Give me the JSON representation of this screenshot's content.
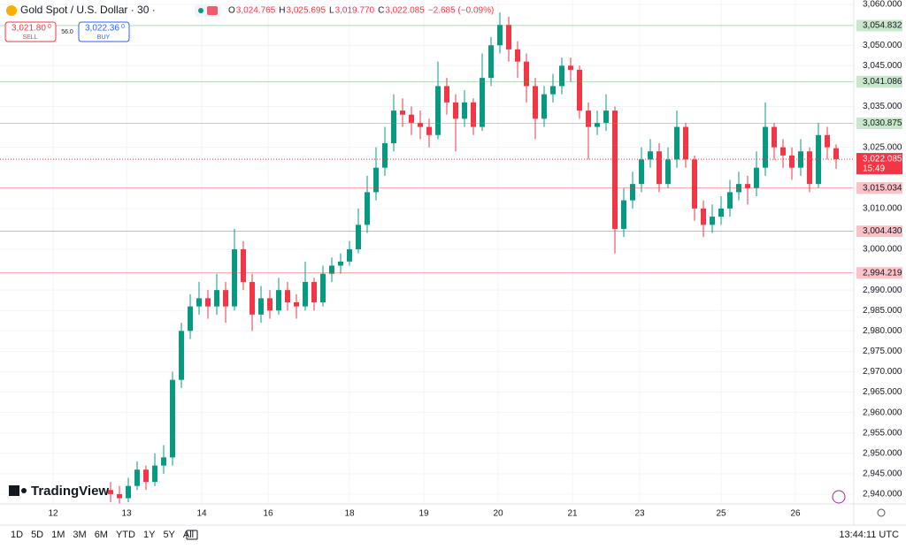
{
  "chart_data": {
    "type": "candlestick",
    "title": "Gold Spot / U.S. Dollar · 30 ·",
    "ohlc_legend": [
      {
        "key": "O",
        "value": "3,024.765"
      },
      {
        "key": "H",
        "value": "3,025.695"
      },
      {
        "key": "L",
        "value": "3,019.770"
      },
      {
        "key": "C",
        "value": "3,022.085"
      }
    ],
    "change": "−2.685 (−0.09%)",
    "up_color": "#089981",
    "down_color": "#f23645",
    "open": [
      2941,
      2940,
      2939,
      2942,
      2946,
      2943,
      2947,
      2949,
      2968,
      2980,
      2986,
      2988,
      2986,
      2990,
      2986,
      3000,
      2992,
      2984,
      2988,
      2985,
      2990,
      2987,
      2986,
      2992,
      2987,
      2994,
      2996,
      2997,
      3000,
      3006,
      3014,
      3020,
      3026,
      3034,
      3033,
      3031,
      3030,
      3028,
      3040,
      3036,
      3032,
      3036,
      3030,
      3042,
      3050,
      3055,
      3049,
      3046,
      3040,
      3032,
      3038,
      3040,
      3045,
      3044,
      3034,
      3030,
      3031,
      3034,
      3005,
      3012,
      3016,
      3022,
      3024,
      3016,
      3022,
      3030,
      3022,
      3010,
      3006,
      3008,
      3010,
      3014,
      3016,
      3015,
      3020,
      3030,
      3025,
      3023,
      3020,
      3024,
      3016,
      3028,
      3024.765
    ],
    "high": [
      2943,
      2942,
      2944,
      2948,
      2947,
      2950,
      2952,
      2970,
      2982,
      2989,
      2992,
      2990,
      2994,
      2992,
      3005,
      3002,
      2994,
      2991,
      2990,
      2993,
      2992,
      2989,
      2997,
      2993,
      2996,
      2998,
      2999,
      3002,
      3010,
      3018,
      3025,
      3030,
      3038,
      3037,
      3035,
      3034,
      3032,
      3046,
      3042,
      3038,
      3039,
      3037,
      3048,
      3052,
      3058,
      3057,
      3051,
      3048,
      3042,
      3040,
      3043,
      3047,
      3047,
      3045,
      3036,
      3034,
      3038,
      3035,
      3015,
      3019,
      3025,
      3027,
      3026,
      3025,
      3034,
      3031,
      3023,
      3012,
      3011,
      3013,
      3017,
      3019,
      3018,
      3024,
      3036,
      3031,
      3027,
      3025,
      3027,
      3025,
      3031,
      3030,
      3025.695
    ],
    "low": [
      2938,
      2937.5,
      2938,
      2941,
      2941,
      2942,
      2945,
      2947,
      2966,
      2978,
      2984,
      2983,
      2984,
      2982,
      2985,
      2990,
      2980,
      2982,
      2983,
      2984,
      2985,
      2983,
      2985,
      2985,
      2986,
      2992,
      2994,
      2996,
      2999,
      3004,
      3012,
      3018,
      3024,
      3030,
      3028,
      3027,
      3025,
      3027,
      3033,
      3024,
      3030,
      3028,
      3029,
      3040,
      3048,
      3046,
      3042,
      3036,
      3027,
      3030,
      3036,
      3038,
      3041,
      3032,
      3022,
      3028,
      3029,
      2999,
      3003,
      3010,
      3014,
      3020,
      3014,
      3015,
      3020,
      3020,
      3007,
      3003,
      3004,
      3006,
      3008,
      3012,
      3011,
      3013,
      3018,
      3022,
      3020,
      3017,
      3018,
      3014,
      3015,
      3022,
      3019.77
    ],
    "close": [
      2940,
      2939,
      2942,
      2946,
      2943,
      2947,
      2949,
      2968,
      2980,
      2986,
      2988,
      2986,
      2990,
      2986,
      3000,
      2992,
      2984,
      2988,
      2985,
      2990,
      2987,
      2986,
      2992,
      2987,
      2994,
      2996,
      2997,
      3000,
      3006,
      3014,
      3020,
      3026,
      3034,
      3033,
      3031,
      3030,
      3028,
      3040,
      3036,
      3032,
      3036,
      3030,
      3042,
      3050,
      3055,
      3049,
      3046,
      3040,
      3032,
      3038,
      3040,
      3045,
      3044,
      3034,
      3030,
      3031,
      3034,
      3005,
      3012,
      3016,
      3022,
      3024,
      3016,
      3022,
      3030,
      3022,
      3010,
      3006,
      3008,
      3010,
      3014,
      3016,
      3015,
      3020,
      3030,
      3025,
      3023,
      3020,
      3024,
      3016,
      3028,
      3025,
      3022.085
    ],
    "ylim": [
      2937.6,
      3061.1
    ],
    "yticks": [
      {
        "value": 3060,
        "label": "3,060.000"
      },
      {
        "value": 3050,
        "label": "3,050.000"
      },
      {
        "value": 3045,
        "label": "3,045.000"
      },
      {
        "value": 3035,
        "label": "3,035.000"
      },
      {
        "value": 3025,
        "label": "3,025.000"
      },
      {
        "value": 3010,
        "label": "3,010.000"
      },
      {
        "value": 3000,
        "label": "3,000.000"
      },
      {
        "value": 2990,
        "label": "2,990.000"
      },
      {
        "value": 2985,
        "label": "2,985.000"
      },
      {
        "value": 2980,
        "label": "2,980.000"
      },
      {
        "value": 2975,
        "label": "2,975.000"
      },
      {
        "value": 2970,
        "label": "2,970.000"
      },
      {
        "value": 2965,
        "label": "2,965.000"
      },
      {
        "value": 2960,
        "label": "2,960.000"
      },
      {
        "value": 2955,
        "label": "2,955.000"
      },
      {
        "value": 2950,
        "label": "2,950.000"
      },
      {
        "value": 2945,
        "label": "2,945.000"
      },
      {
        "value": 2940,
        "label": "2,940.000"
      }
    ],
    "xlim": [
      -12.5,
      84
    ],
    "xticks": [
      {
        "value": -6.5,
        "label": "12"
      },
      {
        "value": 1.8,
        "label": "13"
      },
      {
        "value": 10.3,
        "label": "14"
      },
      {
        "value": 17.8,
        "label": "16"
      },
      {
        "value": 27,
        "label": "18"
      },
      {
        "value": 35.4,
        "label": "19"
      },
      {
        "value": 43.8,
        "label": "20"
      },
      {
        "value": 52.2,
        "label": "21"
      },
      {
        "value": 59.8,
        "label": "23"
      },
      {
        "value": 69,
        "label": "25"
      },
      {
        "value": 77.4,
        "label": "26"
      }
    ],
    "grid": true,
    "levels": [
      {
        "value": 3054.832,
        "label": "3,054.832",
        "color": "#4caf50"
      },
      {
        "value": 3041.086,
        "label": "3,041.086",
        "color": "#4caf50"
      },
      {
        "value": 3030.875,
        "label": "3,030.875",
        "color": "#4caf50"
      },
      {
        "value": 3015.034,
        "label": "3,015.034",
        "color": "#f23645"
      },
      {
        "value": 3004.43,
        "label": "3,004.430",
        "color": "#f23645"
      },
      {
        "value": 2994.219,
        "label": "2,994.219",
        "color": "#f23645"
      }
    ],
    "last": {
      "value": 3022.085,
      "label": "3,022.085",
      "countdown": "15:49"
    }
  },
  "trade": {
    "sell_price": "3,021.80",
    "sell_sup": "0",
    "sell_label": "SELL",
    "spread": "56.0",
    "buy_price": "3,022.36",
    "buy_sup": "0",
    "buy_label": "BUY"
  },
  "brand": "TradingView",
  "ranges": [
    "1D",
    "5D",
    "1M",
    "3M",
    "6M",
    "YTD",
    "1Y",
    "5Y",
    "All"
  ],
  "clock": "13:44:11 UTC"
}
